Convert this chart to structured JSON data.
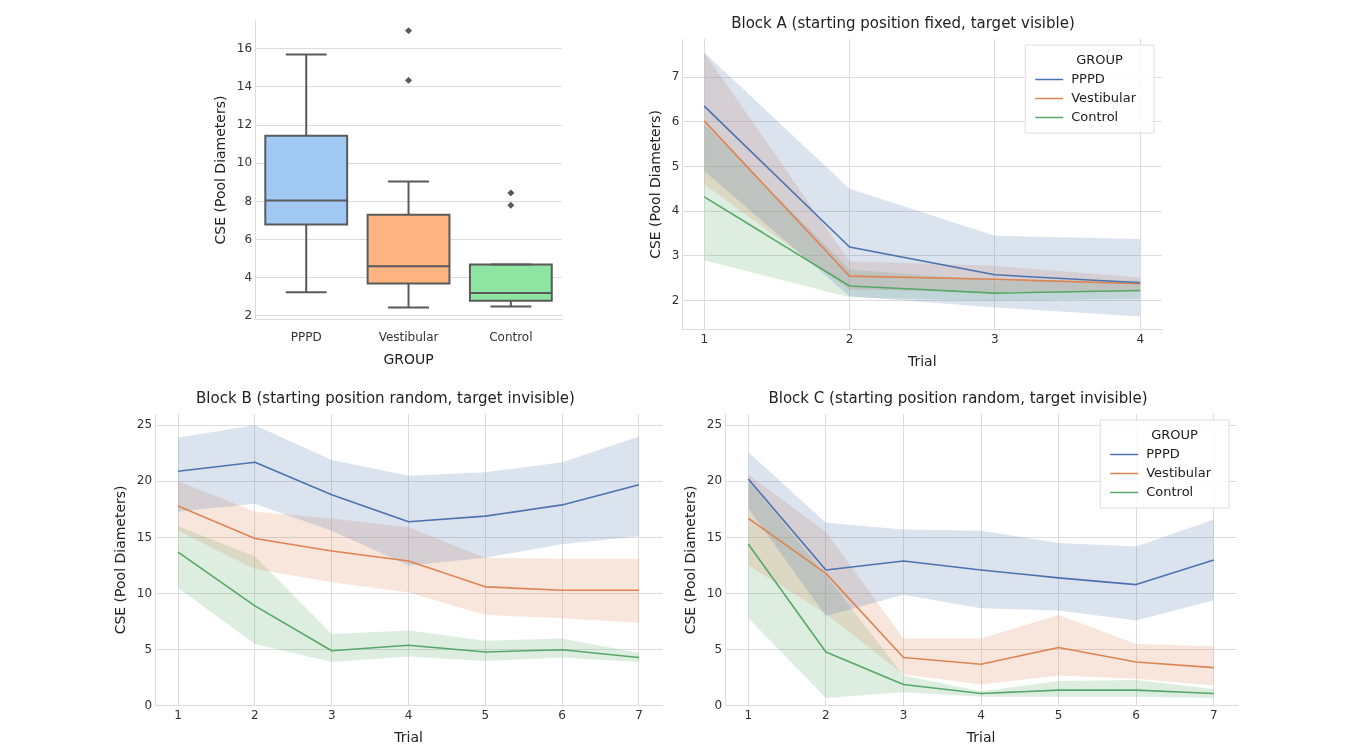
{
  "chart_data": [
    {
      "type": "box",
      "xlabel": "GROUP",
      "ylabel": "CSE (Pool Diameters)",
      "categories": [
        "PPPD",
        "Vestibular",
        "Control"
      ],
      "colors": [
        "#a1c9f4",
        "#ffb482",
        "#8de5a1"
      ],
      "boxes": [
        {
          "low": 3.25,
          "q1": 6.8,
          "median": 8.05,
          "q3": 11.45,
          "high": 15.7
        },
        {
          "low": 2.45,
          "q1": 3.7,
          "median": 4.6,
          "q3": 7.3,
          "high": 9.05,
          "outliers": [
            14.35,
            16.95
          ]
        },
        {
          "low": 2.5,
          "q1": 2.8,
          "median": 3.2,
          "q3": 4.7,
          "high": 4.7,
          "outliers": [
            7.8,
            8.45
          ]
        }
      ],
      "ylim": [
        1.8,
        17.5
      ],
      "yticks": [
        2,
        4,
        6,
        8,
        10,
        12,
        14,
        16
      ],
      "grid": "y"
    },
    {
      "type": "line",
      "title": "Block A (starting position fixed, target visible)",
      "xlabel": "Trial",
      "ylabel": "CSE (Pool Diameters)",
      "legend_title": "GROUP",
      "legend": "top right",
      "marker": "none",
      "grid": true,
      "x": [
        1,
        2,
        3,
        4
      ],
      "xlim": [
        0.85,
        4.15
      ],
      "xticks": [
        1,
        2,
        3,
        4
      ],
      "ylim": [
        1.35,
        7.85
      ],
      "yticks": [
        2,
        3,
        4,
        5,
        6,
        7
      ],
      "series": [
        {
          "name": "PPPD",
          "color": "#4c72b0",
          "values": [
            6.35,
            3.2,
            2.58,
            2.4
          ],
          "lower": [
            4.9,
            2.1,
            1.85,
            1.65
          ],
          "upper": [
            7.55,
            4.5,
            3.45,
            3.38
          ]
        },
        {
          "name": "Vestibular",
          "color": "#dd8452",
          "values": [
            6.02,
            2.55,
            2.48,
            2.38
          ],
          "lower": [
            4.6,
            2.25,
            2.2,
            2.2
          ],
          "upper": [
            7.55,
            2.88,
            2.78,
            2.52
          ]
        },
        {
          "name": "Control",
          "color": "#55a868",
          "values": [
            4.32,
            2.33,
            2.17,
            2.23
          ],
          "lower": [
            2.9,
            2.08,
            2.0,
            2.05
          ],
          "upper": [
            5.95,
            2.7,
            2.45,
            2.45
          ]
        }
      ]
    },
    {
      "type": "line",
      "title": "Block B (starting position random, target invisible)",
      "xlabel": "Trial",
      "ylabel": "CSE (Pool Diameters)",
      "marker": "none",
      "grid": true,
      "x": [
        1,
        2,
        3,
        4,
        5,
        6,
        7
      ],
      "xlim": [
        0.7,
        7.3
      ],
      "xticks": [
        1,
        2,
        3,
        4,
        5,
        6,
        7
      ],
      "ylim": [
        0,
        26
      ],
      "yticks": [
        0,
        5,
        10,
        15,
        20,
        25
      ],
      "series": [
        {
          "color": "#4c72b0",
          "values": [
            20.9,
            21.7,
            18.8,
            16.4,
            16.9,
            17.9,
            19.7
          ],
          "lower": [
            17.3,
            18.0,
            15.6,
            12.5,
            13.2,
            14.4,
            15.1
          ],
          "upper": [
            23.9,
            25.0,
            21.9,
            20.5,
            20.8,
            21.7,
            24.0
          ]
        },
        {
          "color": "#dd8452",
          "values": [
            17.8,
            14.9,
            13.8,
            12.9,
            10.6,
            10.3,
            10.3
          ],
          "lower": [
            15.6,
            12.2,
            11.0,
            10.1,
            8.1,
            7.8,
            7.4
          ],
          "upper": [
            20.0,
            17.3,
            16.7,
            15.9,
            13.2,
            13.1,
            13.1
          ]
        },
        {
          "color": "#55a868",
          "values": [
            13.7,
            8.9,
            4.9,
            5.4,
            4.8,
            5.0,
            4.3
          ],
          "lower": [
            10.5,
            5.5,
            3.9,
            4.4,
            4.0,
            4.3,
            3.9
          ],
          "upper": [
            16.0,
            13.3,
            6.4,
            6.7,
            5.8,
            6.0,
            4.7
          ]
        }
      ]
    },
    {
      "type": "line",
      "title": "Block C (starting position random, target invisible)",
      "xlabel": "Trial",
      "ylabel": "CSE (Pool Diameters)",
      "legend_title": "GROUP",
      "legend": "top right",
      "marker": "none",
      "grid": true,
      "x": [
        1,
        2,
        3,
        4,
        5,
        6,
        7
      ],
      "xlim": [
        0.7,
        7.3
      ],
      "xticks": [
        1,
        2,
        3,
        4,
        5,
        6,
        7
      ],
      "ylim": [
        0,
        26
      ],
      "yticks": [
        0,
        5,
        10,
        15,
        20,
        25
      ],
      "series": [
        {
          "name": "PPPD",
          "color": "#4c72b0",
          "values": [
            20.2,
            12.1,
            12.9,
            12.1,
            11.4,
            10.8,
            13.0
          ],
          "lower": [
            17.6,
            8.0,
            9.9,
            8.7,
            8.5,
            7.6,
            9.4
          ],
          "upper": [
            22.6,
            16.3,
            15.7,
            15.6,
            14.5,
            14.2,
            16.6
          ]
        },
        {
          "name": "Vestibular",
          "color": "#dd8452",
          "values": [
            16.7,
            11.8,
            4.3,
            3.7,
            5.2,
            3.9,
            3.4
          ],
          "lower": [
            12.5,
            8.2,
            2.8,
            1.9,
            2.7,
            2.4,
            1.8
          ],
          "upper": [
            20.6,
            15.5,
            6.0,
            6.0,
            8.1,
            5.5,
            5.3
          ]
        },
        {
          "name": "Control",
          "color": "#55a868",
          "values": [
            14.4,
            4.8,
            1.9,
            1.1,
            1.4,
            1.4,
            1.1
          ],
          "lower": [
            7.8,
            0.7,
            1.2,
            0.8,
            0.8,
            0.8,
            0.7
          ],
          "upper": [
            20.1,
            11.6,
            2.7,
            1.3,
            2.2,
            2.3,
            1.5
          ]
        }
      ]
    }
  ]
}
